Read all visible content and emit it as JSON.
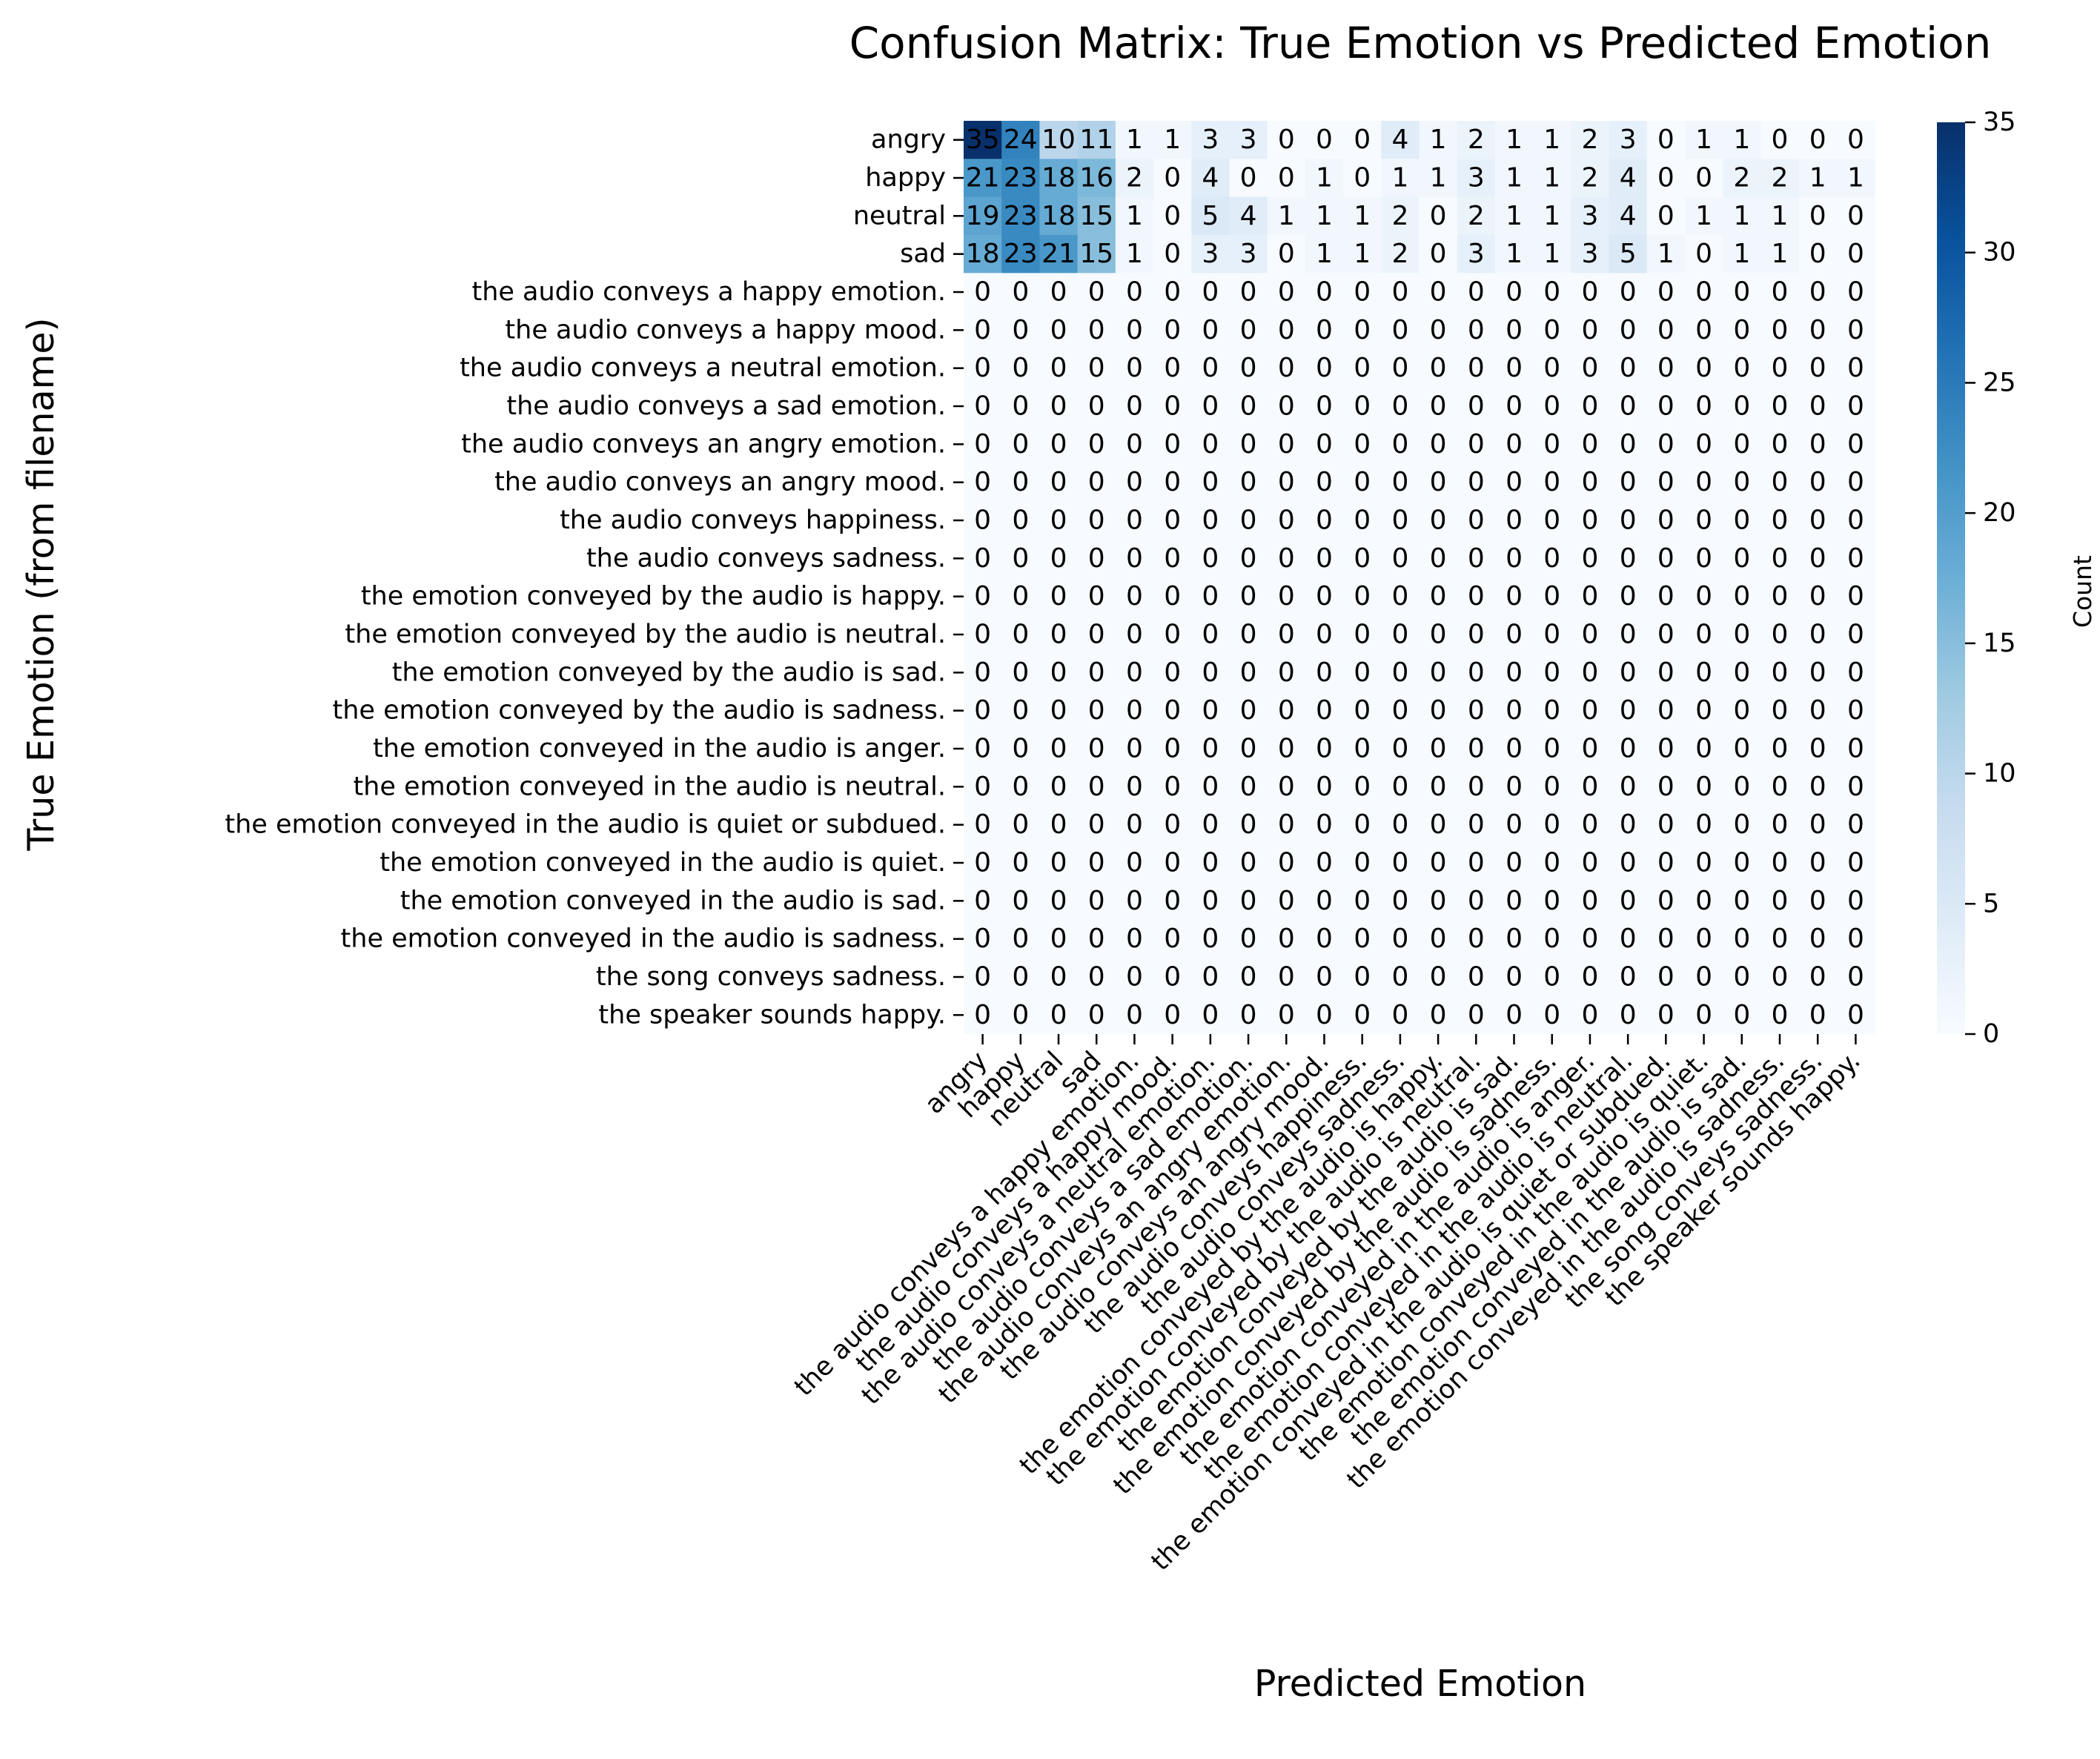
{
  "chart_data": {
    "type": "heatmap",
    "title": "Confusion Matrix: True Emotion vs Predicted Emotion",
    "xlabel": "Predicted Emotion",
    "ylabel": "True Emotion (from filename)",
    "colorbar": {
      "label": "Count",
      "min": 0,
      "max": 35,
      "ticks": [
        0,
        5,
        10,
        15,
        20,
        25,
        30,
        35
      ],
      "colormap": "Blues"
    },
    "x_categories": [
      "angry",
      "happy",
      "neutral",
      "sad",
      "the audio conveys a happy emotion.",
      "the audio conveys a happy mood.",
      "the audio conveys a neutral emotion.",
      "the audio conveys a sad emotion.",
      "the audio conveys an angry emotion.",
      "the audio conveys an angry mood.",
      "the audio conveys happiness.",
      "the audio conveys sadness.",
      "the emotion conveyed by the audio is happy.",
      "the emotion conveyed by the audio is neutral.",
      "the emotion conveyed by the audio is sad.",
      "the emotion conveyed by the audio is sadness.",
      "the emotion conveyed in the audio is anger.",
      "the emotion conveyed in the audio is neutral.",
      "the emotion conveyed in the audio is quiet or subdued.",
      "the emotion conveyed in the audio is quiet.",
      "the emotion conveyed in the audio is sad.",
      "the emotion conveyed in the audio is sadness.",
      "the song conveys sadness.",
      "the speaker sounds happy."
    ],
    "y_categories": [
      "angry",
      "happy",
      "neutral",
      "sad",
      "the audio conveys a happy emotion.",
      "the audio conveys a happy mood.",
      "the audio conveys a neutral emotion.",
      "the audio conveys a sad emotion.",
      "the audio conveys an angry emotion.",
      "the audio conveys an angry mood.",
      "the audio conveys happiness.",
      "the audio conveys sadness.",
      "the emotion conveyed by the audio is happy.",
      "the emotion conveyed by the audio is neutral.",
      "the emotion conveyed by the audio is sad.",
      "the emotion conveyed by the audio is sadness.",
      "the emotion conveyed in the audio is anger.",
      "the emotion conveyed in the audio is neutral.",
      "the emotion conveyed in the audio is quiet or subdued.",
      "the emotion conveyed in the audio is quiet.",
      "the emotion conveyed in the audio is sad.",
      "the emotion conveyed in the audio is sadness.",
      "the song conveys sadness.",
      "the speaker sounds happy."
    ],
    "values": [
      [
        35,
        24,
        10,
        11,
        1,
        1,
        3,
        3,
        0,
        0,
        0,
        4,
        1,
        2,
        1,
        1,
        2,
        3,
        0,
        1,
        1,
        0,
        0,
        0
      ],
      [
        21,
        23,
        18,
        16,
        2,
        0,
        4,
        0,
        0,
        1,
        0,
        1,
        1,
        3,
        1,
        1,
        2,
        4,
        0,
        0,
        2,
        2,
        1,
        1
      ],
      [
        19,
        23,
        18,
        15,
        1,
        0,
        5,
        4,
        1,
        1,
        1,
        2,
        0,
        2,
        1,
        1,
        3,
        4,
        0,
        1,
        1,
        1,
        0,
        0
      ],
      [
        18,
        23,
        21,
        15,
        1,
        0,
        3,
        3,
        0,
        1,
        1,
        2,
        0,
        3,
        1,
        1,
        3,
        5,
        1,
        0,
        1,
        1,
        0,
        0
      ],
      [
        0,
        0,
        0,
        0,
        0,
        0,
        0,
        0,
        0,
        0,
        0,
        0,
        0,
        0,
        0,
        0,
        0,
        0,
        0,
        0,
        0,
        0,
        0,
        0
      ],
      [
        0,
        0,
        0,
        0,
        0,
        0,
        0,
        0,
        0,
        0,
        0,
        0,
        0,
        0,
        0,
        0,
        0,
        0,
        0,
        0,
        0,
        0,
        0,
        0
      ],
      [
        0,
        0,
        0,
        0,
        0,
        0,
        0,
        0,
        0,
        0,
        0,
        0,
        0,
        0,
        0,
        0,
        0,
        0,
        0,
        0,
        0,
        0,
        0,
        0
      ],
      [
        0,
        0,
        0,
        0,
        0,
        0,
        0,
        0,
        0,
        0,
        0,
        0,
        0,
        0,
        0,
        0,
        0,
        0,
        0,
        0,
        0,
        0,
        0,
        0
      ],
      [
        0,
        0,
        0,
        0,
        0,
        0,
        0,
        0,
        0,
        0,
        0,
        0,
        0,
        0,
        0,
        0,
        0,
        0,
        0,
        0,
        0,
        0,
        0,
        0
      ],
      [
        0,
        0,
        0,
        0,
        0,
        0,
        0,
        0,
        0,
        0,
        0,
        0,
        0,
        0,
        0,
        0,
        0,
        0,
        0,
        0,
        0,
        0,
        0,
        0
      ],
      [
        0,
        0,
        0,
        0,
        0,
        0,
        0,
        0,
        0,
        0,
        0,
        0,
        0,
        0,
        0,
        0,
        0,
        0,
        0,
        0,
        0,
        0,
        0,
        0
      ],
      [
        0,
        0,
        0,
        0,
        0,
        0,
        0,
        0,
        0,
        0,
        0,
        0,
        0,
        0,
        0,
        0,
        0,
        0,
        0,
        0,
        0,
        0,
        0,
        0
      ],
      [
        0,
        0,
        0,
        0,
        0,
        0,
        0,
        0,
        0,
        0,
        0,
        0,
        0,
        0,
        0,
        0,
        0,
        0,
        0,
        0,
        0,
        0,
        0,
        0
      ],
      [
        0,
        0,
        0,
        0,
        0,
        0,
        0,
        0,
        0,
        0,
        0,
        0,
        0,
        0,
        0,
        0,
        0,
        0,
        0,
        0,
        0,
        0,
        0,
        0
      ],
      [
        0,
        0,
        0,
        0,
        0,
        0,
        0,
        0,
        0,
        0,
        0,
        0,
        0,
        0,
        0,
        0,
        0,
        0,
        0,
        0,
        0,
        0,
        0,
        0
      ],
      [
        0,
        0,
        0,
        0,
        0,
        0,
        0,
        0,
        0,
        0,
        0,
        0,
        0,
        0,
        0,
        0,
        0,
        0,
        0,
        0,
        0,
        0,
        0,
        0
      ],
      [
        0,
        0,
        0,
        0,
        0,
        0,
        0,
        0,
        0,
        0,
        0,
        0,
        0,
        0,
        0,
        0,
        0,
        0,
        0,
        0,
        0,
        0,
        0,
        0
      ],
      [
        0,
        0,
        0,
        0,
        0,
        0,
        0,
        0,
        0,
        0,
        0,
        0,
        0,
        0,
        0,
        0,
        0,
        0,
        0,
        0,
        0,
        0,
        0,
        0
      ],
      [
        0,
        0,
        0,
        0,
        0,
        0,
        0,
        0,
        0,
        0,
        0,
        0,
        0,
        0,
        0,
        0,
        0,
        0,
        0,
        0,
        0,
        0,
        0,
        0
      ],
      [
        0,
        0,
        0,
        0,
        0,
        0,
        0,
        0,
        0,
        0,
        0,
        0,
        0,
        0,
        0,
        0,
        0,
        0,
        0,
        0,
        0,
        0,
        0,
        0
      ],
      [
        0,
        0,
        0,
        0,
        0,
        0,
        0,
        0,
        0,
        0,
        0,
        0,
        0,
        0,
        0,
        0,
        0,
        0,
        0,
        0,
        0,
        0,
        0,
        0
      ],
      [
        0,
        0,
        0,
        0,
        0,
        0,
        0,
        0,
        0,
        0,
        0,
        0,
        0,
        0,
        0,
        0,
        0,
        0,
        0,
        0,
        0,
        0,
        0,
        0
      ],
      [
        0,
        0,
        0,
        0,
        0,
        0,
        0,
        0,
        0,
        0,
        0,
        0,
        0,
        0,
        0,
        0,
        0,
        0,
        0,
        0,
        0,
        0,
        0,
        0
      ],
      [
        0,
        0,
        0,
        0,
        0,
        0,
        0,
        0,
        0,
        0,
        0,
        0,
        0,
        0,
        0,
        0,
        0,
        0,
        0,
        0,
        0,
        0,
        0,
        0
      ]
    ]
  }
}
